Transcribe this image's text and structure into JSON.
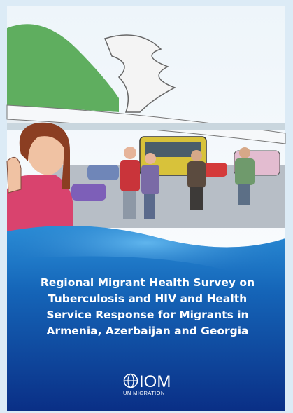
{
  "cover": {
    "title_lines": [
      "Regional Migrant Health Survey on",
      "Tuberculosis and HIV and Health",
      "Service Response for Migrants in",
      "Armenia, Azerbaijan and Georgia"
    ],
    "logo": {
      "name": "IOM",
      "tagline": "UN MIGRATION"
    }
  }
}
